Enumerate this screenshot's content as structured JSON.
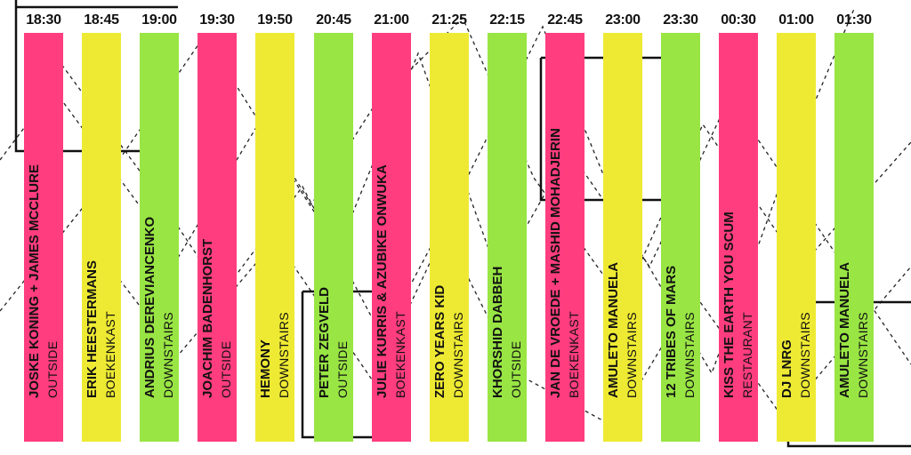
{
  "colors": {
    "pink": "#ff3d7f",
    "yellow": "#eeea33",
    "green": "#99e544"
  },
  "slots": [
    {
      "time": "18:30",
      "artist": "JOSKE KONING + JAMES MCCLURE",
      "venue": "OUTSIDE",
      "color": "pink"
    },
    {
      "time": "18:45",
      "artist": "ERIK HEESTERMANS",
      "venue": "BOEKENKAST",
      "color": "yellow"
    },
    {
      "time": "19:00",
      "artist": "ANDRIUS DEREVIANCENKO",
      "venue": "DOWNSTAIRS",
      "color": "green"
    },
    {
      "time": "19:30",
      "artist": "JOACHIM BADENHORST",
      "venue": "OUTSIDE",
      "color": "pink"
    },
    {
      "time": "19:50",
      "artist": "HEMONY",
      "venue": "DOWNSTAIRS",
      "color": "yellow"
    },
    {
      "time": "20:45",
      "artist": "PETER ZEGVELD",
      "venue": "OUTSIDE",
      "color": "green"
    },
    {
      "time": "21:00",
      "artist": "JULIE KURRIS & AZUBIKE ONWUKA",
      "venue": "BOEKENKAST",
      "color": "pink"
    },
    {
      "time": "21:25",
      "artist": "ZERO YEARS KID",
      "venue": "DOWNSTAIRS",
      "color": "yellow"
    },
    {
      "time": "22:15",
      "artist": "KHORSHID DABBEH",
      "venue": "OUTSIDE",
      "color": "green"
    },
    {
      "time": "22:45",
      "artist": "JAN DE VROEDE + MASHID MOHADJERIN",
      "venue": "BOEKENKAST",
      "color": "pink"
    },
    {
      "time": "23:00",
      "artist": "AMULETO MANUELA",
      "venue": "DOWNSTAIRS",
      "color": "yellow"
    },
    {
      "time": "23:30",
      "artist": "12 TRIBES OF MARS",
      "venue": "DOWNSTAIRS",
      "color": "green"
    },
    {
      "time": "00:30",
      "artist": "KISS THE EARTH YOU SCUM",
      "venue": "RESTAURANT",
      "color": "pink"
    },
    {
      "time": "01:00",
      "artist": "DJ LNRG",
      "venue": "DOWNSTAIRS",
      "color": "yellow"
    },
    {
      "time": "01:30",
      "artist": "AMULETO MANUELA",
      "venue": "DOWNSTAIRS",
      "color": "green"
    }
  ]
}
